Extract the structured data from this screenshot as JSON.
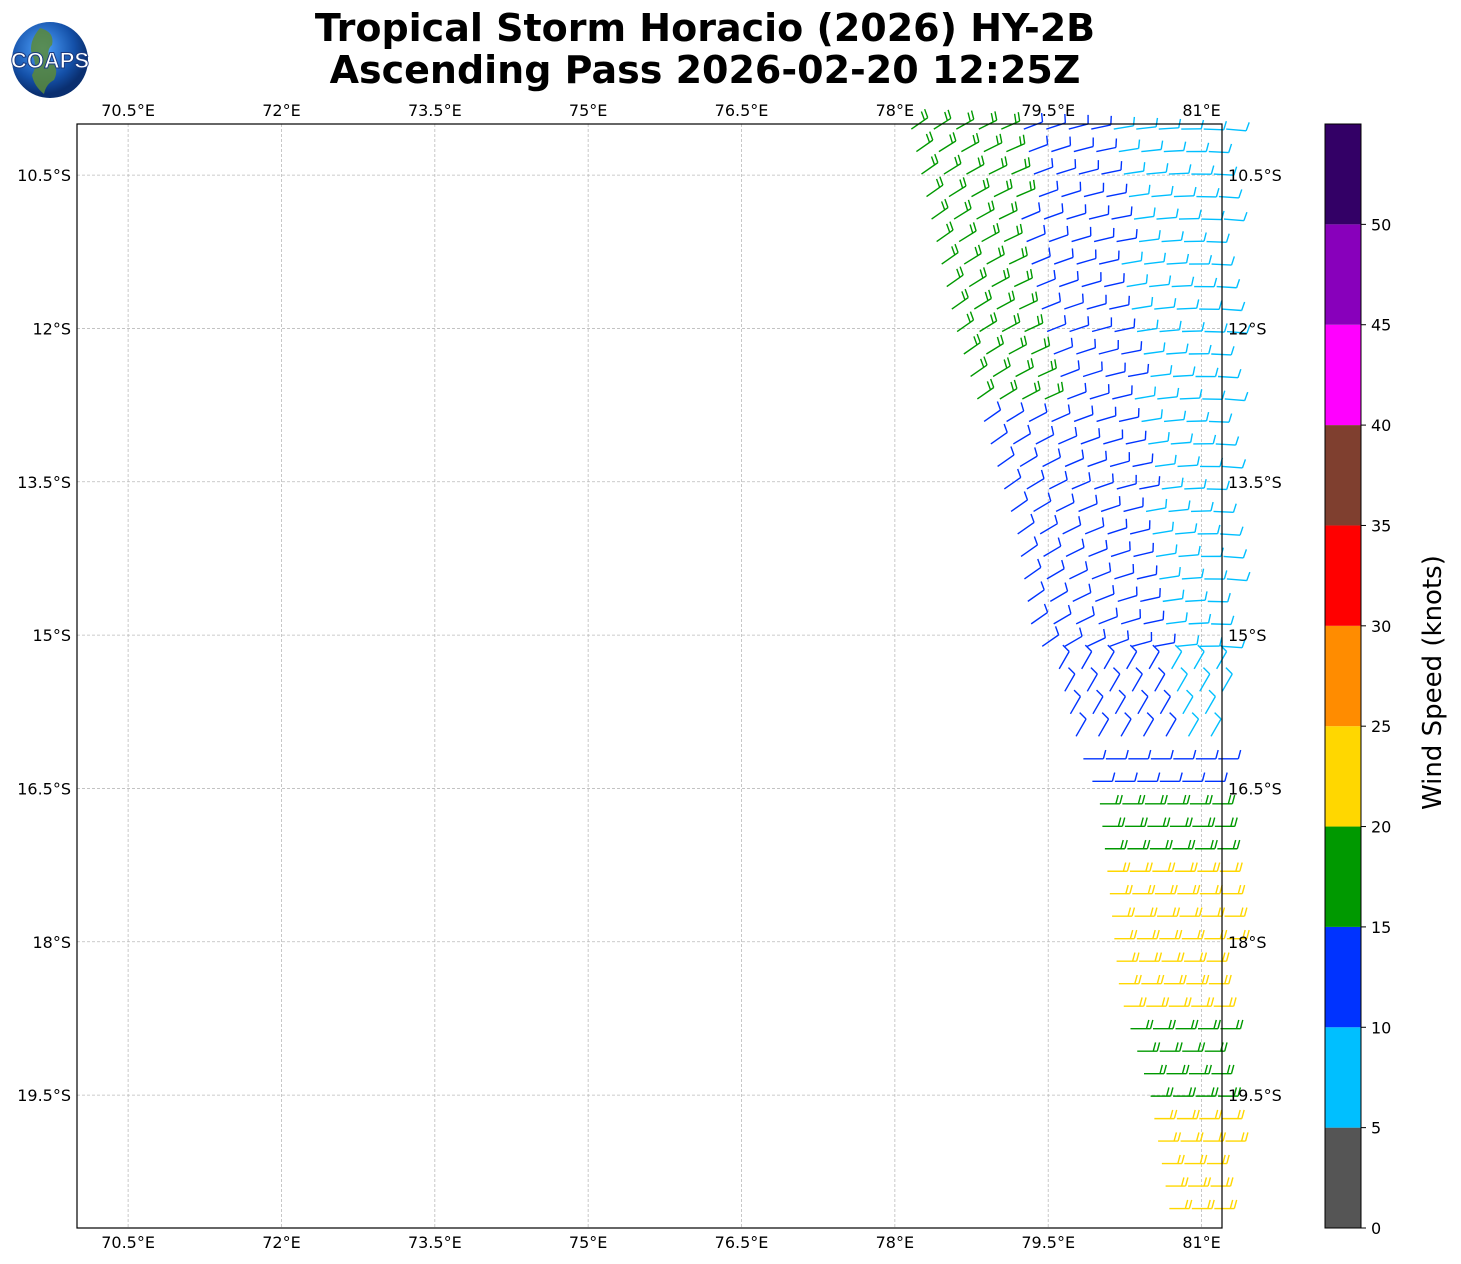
{
  "title": {
    "line1": "Tropical Storm Horacio (2026) HY-2B",
    "line2": "Ascending Pass 2026-02-20 12:25Z"
  },
  "logo": {
    "text": "COAPS"
  },
  "map": {
    "lon_range": [
      70.0,
      81.2
    ],
    "lat_range": [
      -20.8,
      -10.0
    ],
    "lon_ticks": [
      "70.5°E",
      "72°E",
      "73.5°E",
      "75°E",
      "76.5°E",
      "78°E",
      "79.5°E",
      "81°E"
    ],
    "lat_ticks": [
      "10.5°S",
      "12°S",
      "13.5°S",
      "15°S",
      "16.5°S",
      "18°S",
      "19.5°S"
    ],
    "gridlines": true
  },
  "colorbar": {
    "label": "Wind Speed (knots)",
    "ticks": [
      "0",
      "5",
      "10",
      "15",
      "20",
      "25",
      "30",
      "35",
      "40",
      "45",
      "50"
    ],
    "bins": [
      {
        "from": 0,
        "to": 5,
        "color": "#555555"
      },
      {
        "from": 5,
        "to": 10,
        "color": "#00bfff"
      },
      {
        "from": 10,
        "to": 15,
        "color": "#0033ff"
      },
      {
        "from": 15,
        "to": 20,
        "color": "#009900"
      },
      {
        "from": 20,
        "to": 25,
        "color": "#ffd700"
      },
      {
        "from": 25,
        "to": 30,
        "color": "#ff8c00"
      },
      {
        "from": 30,
        "to": 35,
        "color": "#ff0000"
      },
      {
        "from": 35,
        "to": 40,
        "color": "#7f3f2f"
      },
      {
        "from": 40,
        "to": 45,
        "color": "#ff00ff"
      },
      {
        "from": 45,
        "to": 50,
        "color": "#8800bb"
      },
      {
        "from": 50,
        "to": 55,
        "color": "#330066"
      }
    ]
  },
  "wind_field": {
    "description_regions": [
      {
        "lat_from": -10.0,
        "lat_to": -15.3,
        "speed_knots": 12,
        "color": "#0033ff"
      },
      {
        "lat_from": -10.0,
        "lat_to": -12.9,
        "speed_knots": 16,
        "color": "#009900",
        "edge": "west"
      },
      {
        "lat_from": -10.0,
        "lat_to": -16.1,
        "speed_knots": 8,
        "color": "#00bfff",
        "edge": "east"
      },
      {
        "lat_from": -16.1,
        "lat_to": -16.5,
        "speed_knots": 12,
        "color": "#0033ff"
      },
      {
        "lat_from": -16.5,
        "lat_to": -17.3,
        "speed_knots": 18,
        "color": "#009900"
      },
      {
        "lat_from": -17.3,
        "lat_to": -18.8,
        "speed_knots": 22,
        "color": "#ffd700"
      },
      {
        "lat_from": -18.8,
        "lat_to": -19.6,
        "speed_knots": 18,
        "color": "#009900"
      },
      {
        "lat_from": -19.6,
        "lat_to": -20.7,
        "speed_knots": 22,
        "color": "#ffd700"
      }
    ]
  }
}
